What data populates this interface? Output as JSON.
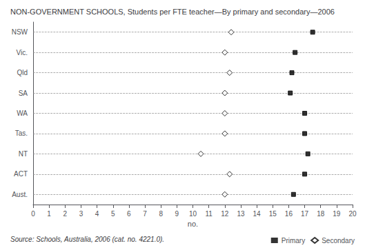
{
  "chart_data": {
    "type": "dot",
    "orientation": "horizontal",
    "title": "NON-GOVERNMENT SCHOOLS, Students per FTE teacher—By primary and secondary—2006",
    "categories": [
      "NSW",
      "Vic.",
      "Qld",
      "SA",
      "WA",
      "Tas.",
      "NT",
      "ACT",
      "Aust."
    ],
    "series": [
      {
        "name": "Primary",
        "color": "#000000",
        "marker": "square",
        "values": [
          17.5,
          16.4,
          16.2,
          16.1,
          17.0,
          17.0,
          17.2,
          17.0,
          16.3
        ]
      },
      {
        "name": "Secondary",
        "color": "#000000",
        "marker": "diamond",
        "values": [
          12.4,
          12.0,
          12.3,
          12.0,
          12.0,
          12.0,
          10.5,
          12.3,
          12.0
        ]
      }
    ],
    "xlabel": "no.",
    "xlim": [
      0,
      20
    ],
    "xticks": [
      0,
      1,
      2,
      3,
      4,
      5,
      6,
      7,
      8,
      9,
      10,
      11,
      12,
      13,
      14,
      15,
      16,
      17,
      18,
      19,
      20
    ],
    "grid": true,
    "legend": "lower right",
    "source": "Source: Schools, Australia, 2006 (cat. no. 4221.0)."
  }
}
